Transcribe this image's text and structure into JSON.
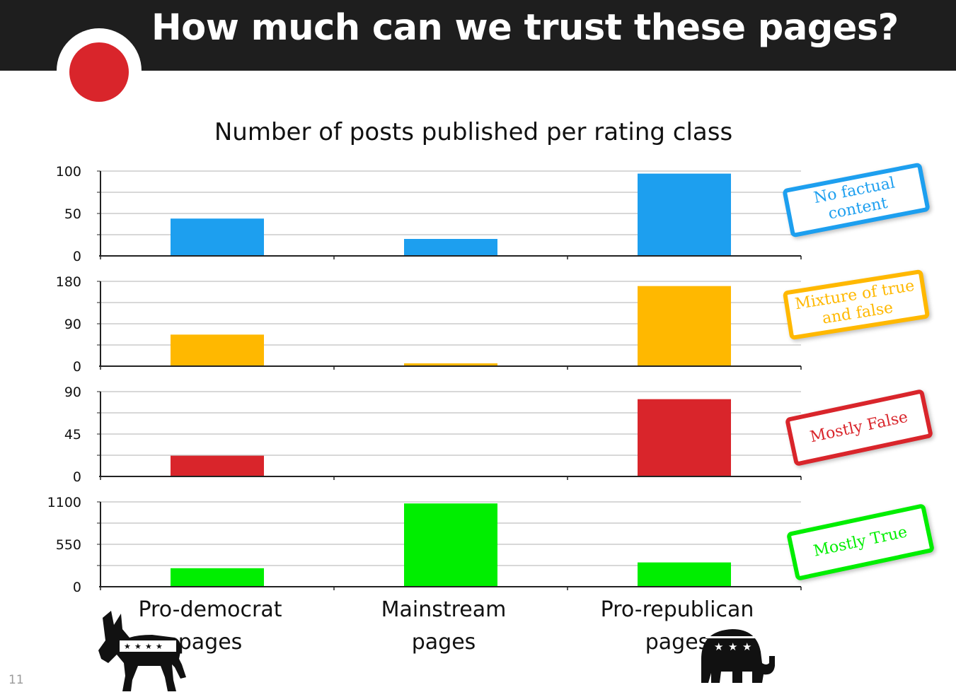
{
  "slide": {
    "title": "How much can we trust these pages?",
    "number": "11"
  },
  "chart_data": {
    "type": "bar",
    "title": "Number of posts published per rating class",
    "categories": [
      "Pro-democrat pages",
      "Mainstream pages",
      "Pro-republican pages"
    ],
    "series": [
      {
        "name": "No factual content",
        "color": "#1d9fef",
        "values": [
          44,
          20,
          97
        ],
        "ylim": [
          0,
          100
        ],
        "yticks": [
          0,
          50,
          100
        ]
      },
      {
        "name": "Mixture of true and false",
        "color": "#ffb800",
        "values": [
          67,
          6,
          170
        ],
        "ylim": [
          0,
          180
        ],
        "yticks": [
          0,
          90,
          180
        ]
      },
      {
        "name": "Mostly False",
        "color": "#d9252b",
        "values": [
          22,
          0,
          82
        ],
        "ylim": [
          0,
          90
        ],
        "yticks": [
          0,
          45,
          90
        ]
      },
      {
        "name": "Mostly True",
        "color": "#00ee00",
        "values": [
          240,
          1080,
          315
        ],
        "ylim": [
          0,
          1100
        ],
        "yticks": [
          0,
          550,
          1100
        ]
      }
    ],
    "grid": true,
    "legend": "right (stamp labels beside each panel)"
  },
  "icons": {
    "left": "donkey-icon",
    "right": "elephant-icon"
  }
}
